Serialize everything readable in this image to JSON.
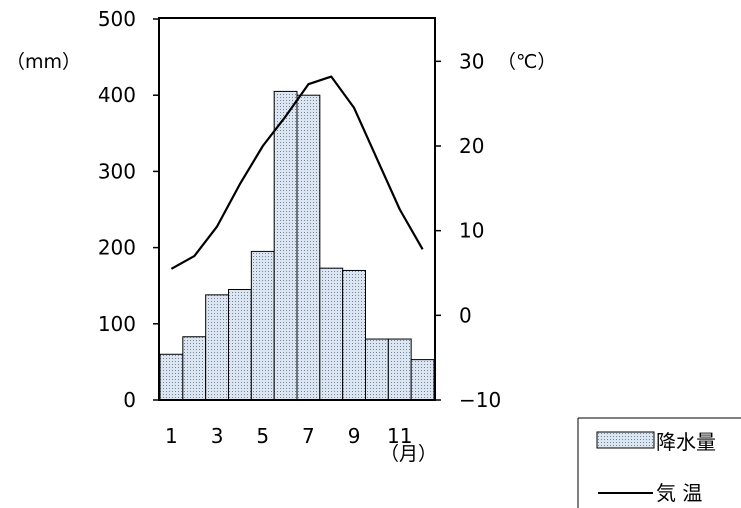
{
  "chart_data": {
    "type": "bar",
    "categories": [
      "1",
      "2",
      "3",
      "4",
      "5",
      "6",
      "7",
      "8",
      "9",
      "10",
      "11",
      "12"
    ],
    "x_tick_labels": [
      "1",
      "3",
      "5",
      "7",
      "9",
      "11"
    ],
    "xlabel": "（月）",
    "y_left": {
      "label": "（mm）",
      "ylim": [
        0,
        500
      ],
      "ticks": [
        "0",
        "100",
        "200",
        "300",
        "400",
        "500"
      ]
    },
    "y_right": {
      "label": "（℃）",
      "ylim": [
        -10,
        35
      ],
      "ticks": [
        "−10",
        "0",
        "10",
        "20",
        "30"
      ]
    },
    "series": [
      {
        "name": "降水量",
        "type": "bar",
        "axis": "left",
        "values": [
          60,
          83,
          138,
          145,
          195,
          405,
          400,
          173,
          170,
          80,
          80,
          53
        ]
      },
      {
        "name": "気温",
        "type": "line",
        "axis": "right",
        "values": [
          5.5,
          7.0,
          10.5,
          15.5,
          20.0,
          23.5,
          27.3,
          28.2,
          24.5,
          18.5,
          12.5,
          7.8
        ]
      }
    ],
    "legend": {
      "position": "bottom-right",
      "entries": [
        "降水量",
        "気 温"
      ]
    },
    "grid": false
  },
  "colors": {
    "bar_fill": "#dce6f0",
    "bar_dot": "#6f86a3",
    "line": "#000000"
  }
}
